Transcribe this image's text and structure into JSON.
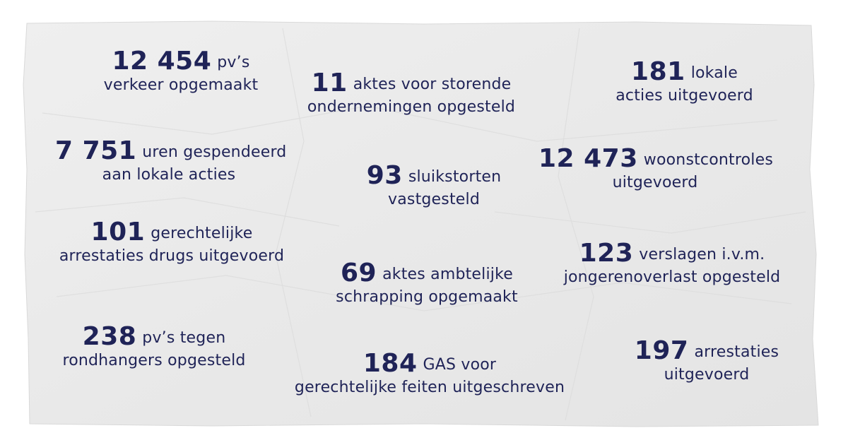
{
  "stats": [
    {
      "number": "12 454",
      "text1": "pv’s",
      "text2": "verkeer opgemaakt"
    },
    {
      "number": "11",
      "text1": "aktes voor storende",
      "text2": "ondernemingen opgesteld"
    },
    {
      "number": "181",
      "text1": "lokale",
      "text2": "acties uitgevoerd"
    },
    {
      "number": "7 751",
      "text1": "uren gespendeerd",
      "text2": "aan lokale acties"
    },
    {
      "number": "93",
      "text1": "sluikstorten",
      "text2": "vastgesteld"
    },
    {
      "number": "12 473",
      "text1": "woonstcontroles",
      "text2": "uitgevoerd"
    },
    {
      "number": "101",
      "text1": "gerechtelijke",
      "text2": "arrestaties drugs uitgevoerd"
    },
    {
      "number": "69",
      "text1": "aktes ambtelijke",
      "text2": "schrapping opgemaakt"
    },
    {
      "number": "123",
      "text1": "verslagen i.v.m.",
      "text2": "jongerenoverlast opgesteld"
    },
    {
      "number": "238",
      "text1": "pv’s tegen",
      "text2": "rondhangers opgesteld"
    },
    {
      "number": "184",
      "text1": "GAS voor",
      "text2": "gerechtelijke feiten uitgeschreven"
    },
    {
      "number": "197",
      "text1": "arrestaties",
      "text2": "uitgevoerd"
    }
  ],
  "colors": {
    "text": "#1f2357",
    "paper": "#ededed",
    "background": "#ffffff"
  }
}
